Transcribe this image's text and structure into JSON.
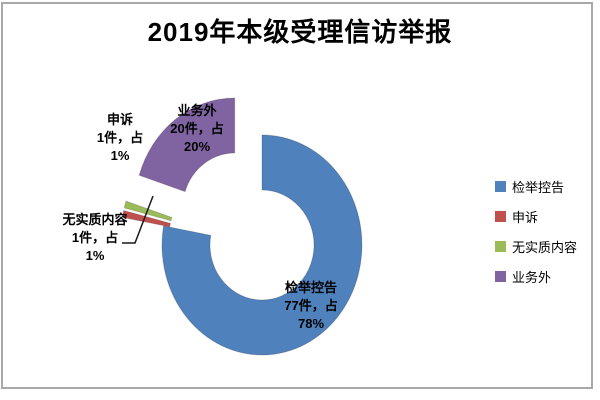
{
  "chart_data": {
    "type": "pie",
    "subtype": "doughnut",
    "title": "2019年本级受理信访举报",
    "categories": [
      "检举控告",
      "申诉",
      "无实质内容",
      "业务外"
    ],
    "values": [
      77,
      1,
      1,
      20
    ],
    "unit": "件",
    "percents": [
      78,
      1,
      1,
      20
    ],
    "colors": [
      "#4F81BD",
      "#C0504D",
      "#9BBB59",
      "#8064A2"
    ],
    "slice_ids": [
      "reports-accusations",
      "appeals",
      "no-substantive-content",
      "non-business"
    ],
    "labels": [
      [
        "检举控告",
        "77件，占",
        "78%"
      ],
      [
        "申诉",
        "1件，占",
        "1%"
      ],
      [
        "无实质内容",
        "1件，占",
        "1%"
      ],
      [
        "业务外",
        "20件，占",
        "20%"
      ]
    ],
    "start_angle": 0,
    "direction": "clockwise",
    "exploded": [
      false,
      true,
      true,
      true
    ],
    "legend_position": "right"
  },
  "legend": {
    "items": [
      {
        "label": "检举控告",
        "color": "#4F81BD"
      },
      {
        "label": "申诉",
        "color": "#C0504D"
      },
      {
        "label": "无实质内容",
        "color": "#9BBB59"
      },
      {
        "label": "业务外",
        "color": "#8064A2"
      }
    ]
  }
}
